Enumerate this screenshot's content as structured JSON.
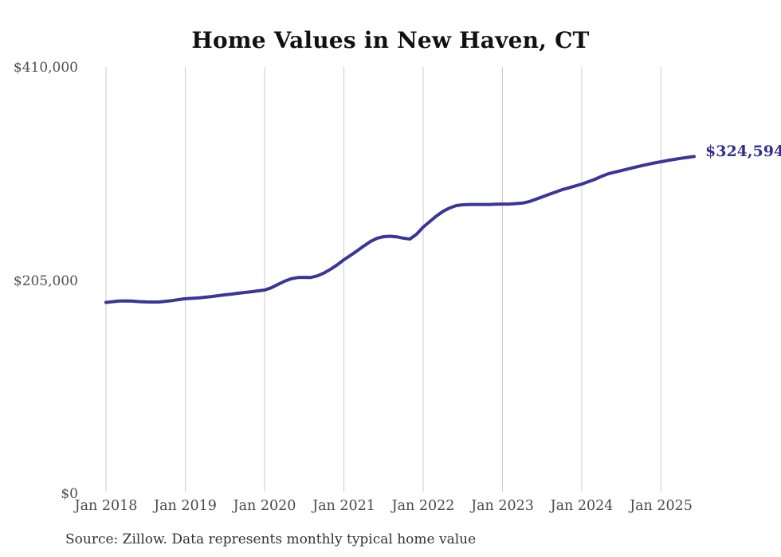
{
  "title": "Home Values in New Haven, CT",
  "end_label": "$324,594",
  "source_note": "Source: Zillow. Data represents monthly typical home value",
  "colors": {
    "line": "#3b3598",
    "end_label": "#312f8d",
    "gridline": "#cccccc",
    "axis_text": "#4a4a4a",
    "title_text": "#111111",
    "background": "#ffffff"
  },
  "chart_data": {
    "type": "line",
    "title": "Home Values in New Haven, CT",
    "x_unit": "month",
    "x_start": "Jan 2018",
    "x_end": "Jun 2025",
    "x_tick_labels": [
      "Jan 2018",
      "Jan 2019",
      "Jan 2020",
      "Jan 2021",
      "Jan 2022",
      "Jan 2023",
      "Jan 2024",
      "Jan 2025"
    ],
    "y_tick_labels": [
      "$0",
      "$205,000",
      "$410,000"
    ],
    "y_tick_values": [
      0,
      205000,
      410000
    ],
    "ylim": [
      0,
      410000
    ],
    "grid": "vertical-only",
    "legend": "none",
    "end_value": 324594,
    "series": [
      {
        "name": "Monthly typical home value",
        "values": [
          184300,
          185000,
          185700,
          185800,
          185500,
          185100,
          184800,
          184700,
          184700,
          185400,
          186100,
          187000,
          187800,
          188200,
          188600,
          189300,
          190000,
          190800,
          191600,
          192300,
          193100,
          193900,
          194600,
          195400,
          196200,
          198300,
          201500,
          204600,
          207000,
          208200,
          208400,
          208300,
          209800,
          212600,
          216300,
          220500,
          225300,
          229500,
          233900,
          238500,
          242800,
          245900,
          247500,
          247900,
          247400,
          246100,
          245200,
          249900,
          256700,
          262100,
          267400,
          271900,
          275100,
          277400,
          278200,
          278500,
          278500,
          278500,
          278500,
          278800,
          278900,
          278900,
          279300,
          279800,
          281200,
          283400,
          285800,
          288100,
          290400,
          292700,
          294400,
          296300,
          298100,
          300400,
          302700,
          305600,
          308000,
          309600,
          311100,
          312700,
          314200,
          315700,
          317100,
          318400,
          319600,
          320800,
          321900,
          322900,
          323800,
          324594
        ]
      }
    ]
  }
}
